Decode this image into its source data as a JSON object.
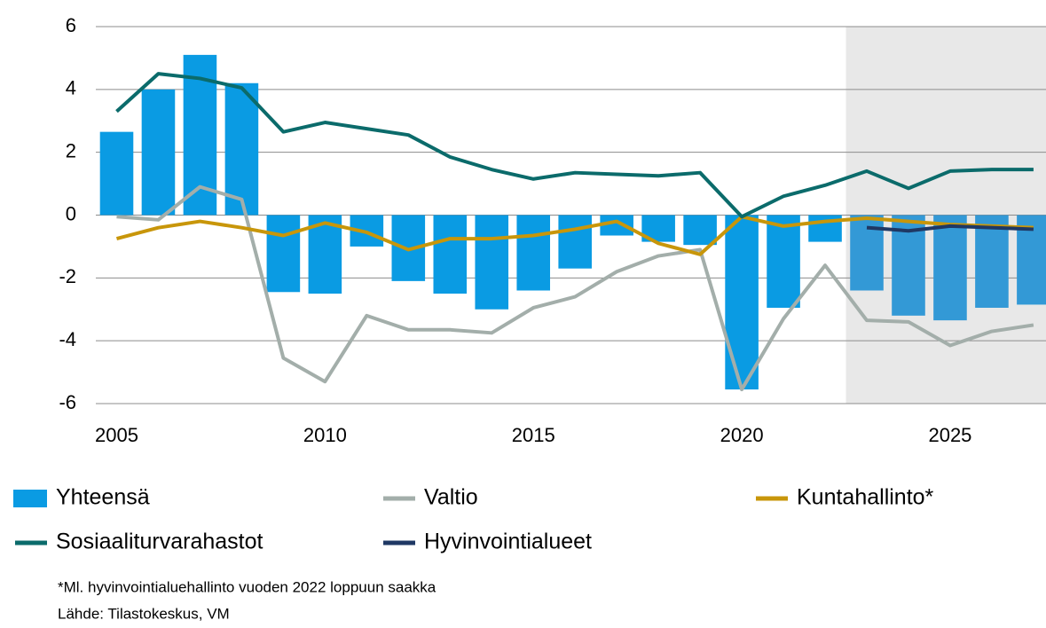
{
  "chart_data": {
    "type": "bar_line",
    "x": [
      2005,
      2006,
      2007,
      2008,
      2009,
      2010,
      2011,
      2012,
      2013,
      2014,
      2015,
      2016,
      2017,
      2018,
      2019,
      2020,
      2021,
      2022,
      2023,
      2024,
      2025,
      2026,
      2027
    ],
    "series": [
      {
        "name": "Yhteensä",
        "type": "bar",
        "color": "#0a9be3",
        "forecast_color": "#3399d6",
        "values": [
          2.65,
          4.0,
          5.1,
          4.2,
          -2.45,
          -2.5,
          -1.0,
          -2.1,
          -2.5,
          -3.0,
          -2.4,
          -1.7,
          -0.65,
          -0.85,
          -0.95,
          -5.55,
          -2.95,
          -0.85,
          -2.4,
          -3.2,
          -3.35,
          -2.95,
          -2.85
        ]
      },
      {
        "name": "Valtio",
        "type": "line",
        "color": "#a3aeaa",
        "values": [
          -0.05,
          -0.15,
          0.9,
          0.5,
          -4.55,
          -5.3,
          -3.2,
          -3.65,
          -3.65,
          -3.75,
          -2.95,
          -2.6,
          -1.8,
          -1.3,
          -1.1,
          -5.55,
          -3.3,
          -1.6,
          -3.35,
          -3.4,
          -4.15,
          -3.7,
          -3.5
        ]
      },
      {
        "name": "Kuntahallinto*",
        "type": "line",
        "color": "#c8960a",
        "values": [
          -0.75,
          -0.4,
          -0.2,
          -0.4,
          -0.65,
          -0.25,
          -0.55,
          -1.1,
          -0.75,
          -0.75,
          -0.65,
          -0.45,
          -0.2,
          -0.9,
          -1.25,
          -0.05,
          -0.35,
          -0.2,
          -0.1,
          -0.2,
          -0.3,
          -0.35,
          -0.4
        ]
      },
      {
        "name": "Sosiaaliturvarahastot",
        "type": "line",
        "color": "#0b6b6b",
        "values": [
          3.3,
          4.5,
          4.35,
          4.05,
          2.65,
          2.95,
          2.75,
          2.55,
          1.85,
          1.45,
          1.15,
          1.35,
          1.3,
          1.25,
          1.35,
          -0.05,
          0.6,
          0.95,
          1.4,
          0.85,
          1.4,
          1.45,
          1.45
        ]
      },
      {
        "name": "Hyvinvointialueet",
        "type": "line",
        "color": "#1f3864",
        "values": [
          null,
          null,
          null,
          null,
          null,
          null,
          null,
          null,
          null,
          null,
          null,
          null,
          null,
          null,
          null,
          null,
          null,
          null,
          -0.4,
          -0.5,
          -0.35,
          -0.4,
          -0.45
        ]
      }
    ],
    "xlim": [
      2004.5,
      2027.3
    ],
    "xticks": [
      2005,
      2010,
      2015,
      2020,
      2025
    ],
    "ylim": [
      -6,
      6
    ],
    "yticks": [
      -6,
      -4,
      -2,
      0,
      2,
      4,
      6
    ],
    "grid": true,
    "forecast_xlim": [
      2022.5,
      2027.3
    ],
    "forecast_fill": "#e8e8e8",
    "notes": [
      "*Ml. hyvinvointialuehallinto  vuoden 2022 loppuun saakka",
      "Lähde: Tilastokeskus, VM"
    ]
  }
}
